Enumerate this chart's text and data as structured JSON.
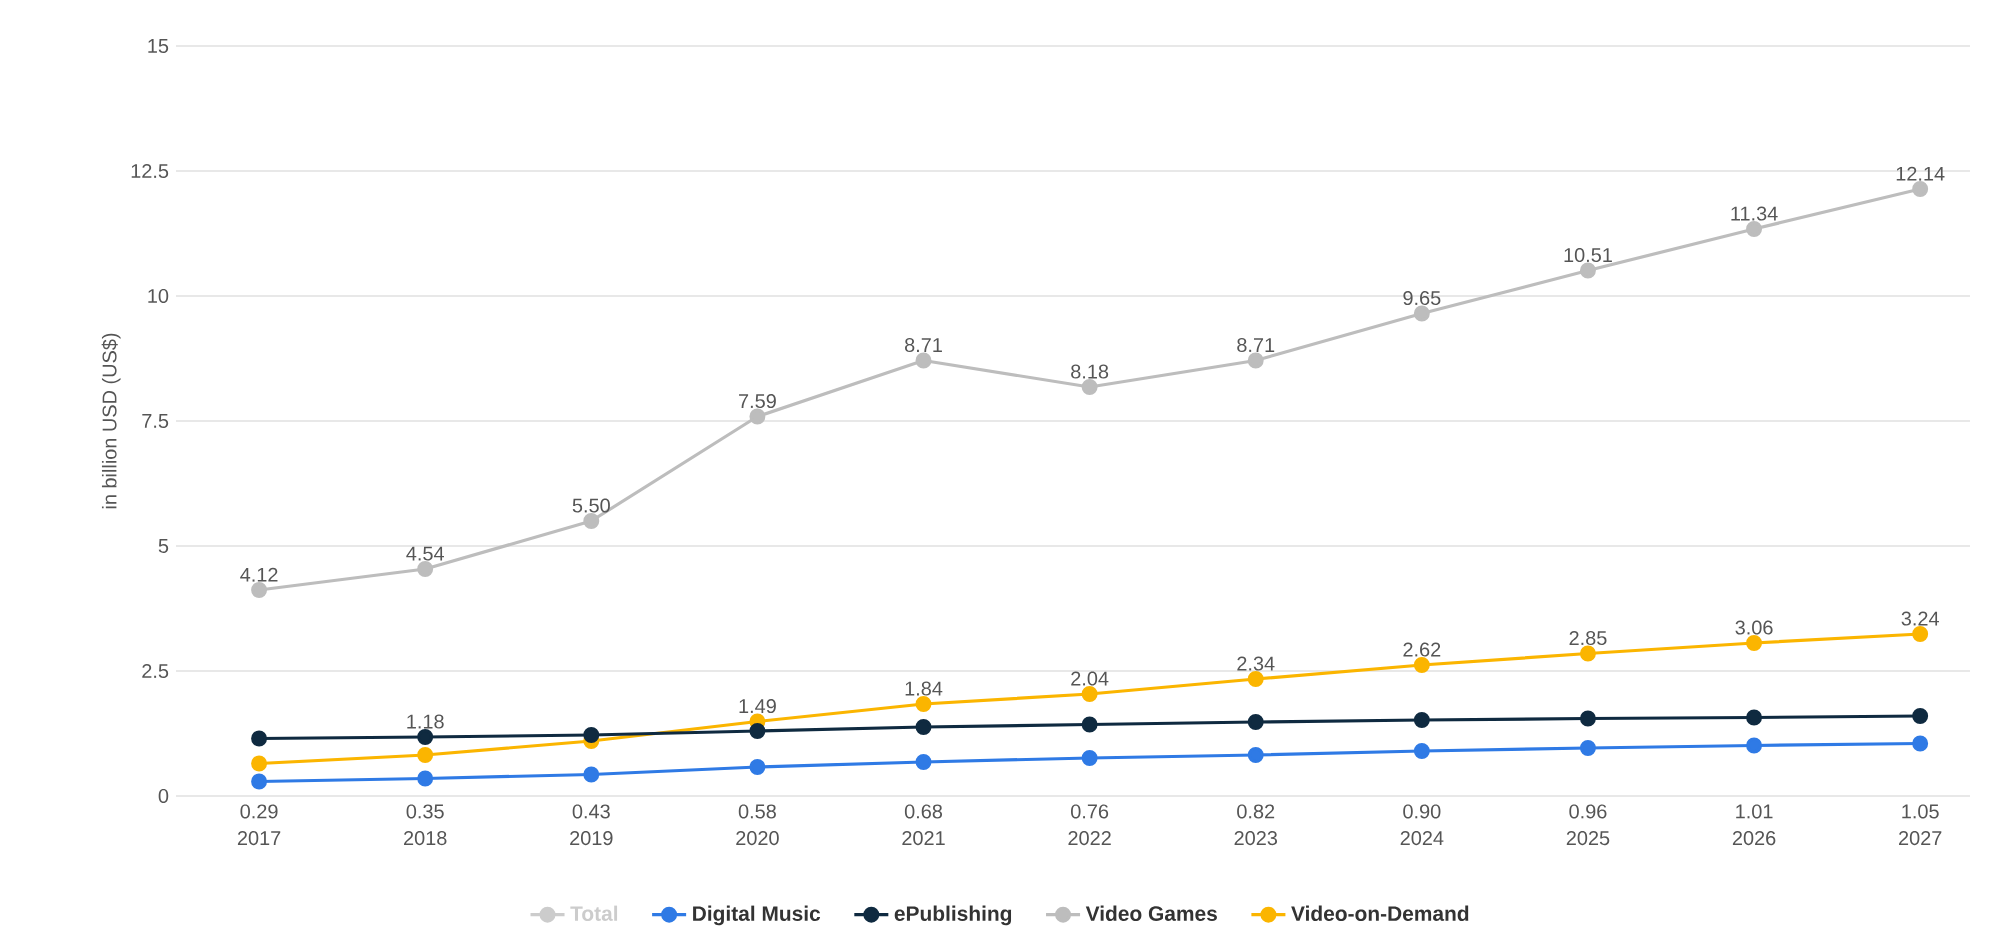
{
  "chart_data": {
    "type": "line",
    "ylabel": "in billion USD (US$)",
    "categories": [
      "2017",
      "2018",
      "2019",
      "2020",
      "2021",
      "2022",
      "2023",
      "2024",
      "2025",
      "2026",
      "2027"
    ],
    "ylim": [
      0,
      15
    ],
    "yticks": [
      0,
      2.5,
      5,
      7.5,
      10,
      12.5,
      15
    ],
    "grid": "y",
    "legend": "bottom",
    "marker": "circle",
    "line_style": "solid",
    "series": [
      {
        "name": "Total",
        "color": "#cccccc",
        "values": [
          null,
          null,
          null,
          null,
          null,
          null,
          null,
          null,
          null,
          null,
          null
        ]
      },
      {
        "name": "Digital Music",
        "color": "#2f7ae5",
        "values": [
          0.29,
          0.35,
          0.43,
          0.58,
          0.68,
          0.76,
          0.82,
          0.9,
          0.96,
          1.01,
          1.05
        ],
        "value_labels": [
          "0.29",
          "0.35",
          "0.43",
          "0.58",
          "0.68",
          "0.76",
          "0.82",
          "0.90",
          "0.96",
          "1.01",
          "1.05"
        ]
      },
      {
        "name": "ePublishing",
        "color": "#0f2a40",
        "values": [
          1.15,
          1.18,
          1.22,
          1.3,
          1.38,
          1.43,
          1.48,
          1.52,
          1.55,
          1.57,
          1.6
        ],
        "value_labels": [
          null,
          "1.18",
          null,
          null,
          null,
          null,
          null,
          null,
          null,
          null,
          null
        ]
      },
      {
        "name": "Video Games",
        "color": "#bdbdbd",
        "values": [
          4.12,
          4.54,
          5.5,
          7.59,
          8.71,
          8.18,
          8.71,
          9.65,
          10.51,
          11.34,
          12.14
        ],
        "value_labels": [
          "4.12",
          "4.54",
          "5.50",
          "7.59",
          "8.71",
          "8.18",
          "8.71",
          "9.65",
          "10.51",
          "11.34",
          "12.14"
        ]
      },
      {
        "name": "Video-on-Demand",
        "color": "#fbb500",
        "values": [
          0.65,
          0.82,
          1.1,
          1.49,
          1.84,
          2.04,
          2.34,
          2.62,
          2.85,
          3.06,
          3.24
        ],
        "value_labels": [
          null,
          null,
          null,
          "1.49",
          "1.84",
          "2.04",
          "2.34",
          "2.62",
          "2.85",
          "3.06",
          "3.24"
        ]
      }
    ]
  }
}
